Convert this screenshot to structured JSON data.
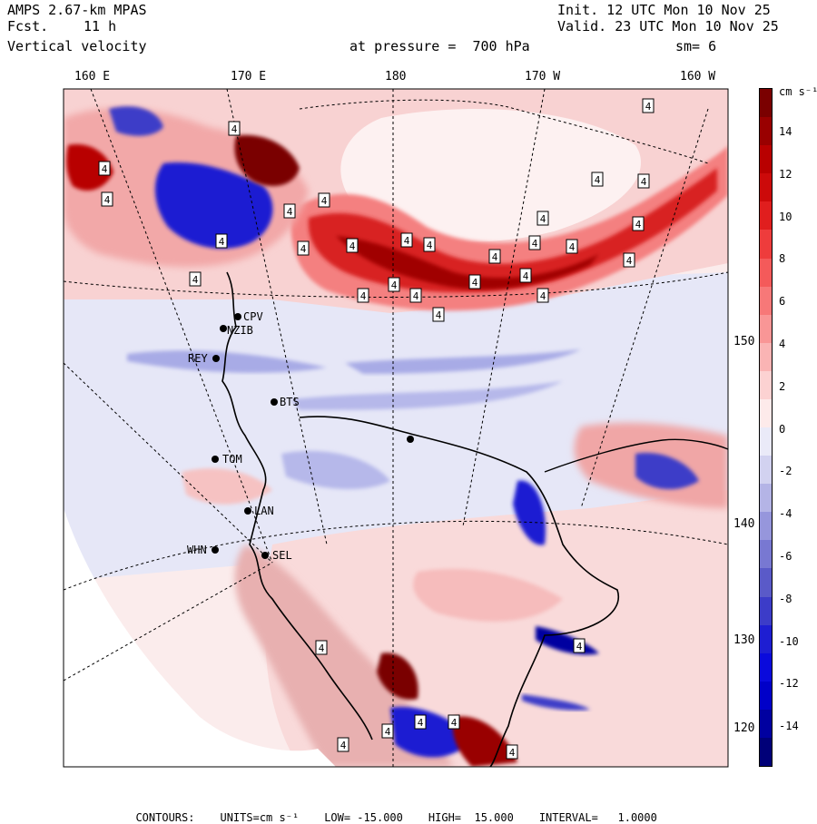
{
  "header": {
    "model": "AMPS 2.67-km MPAS",
    "forecast_label": "Fcst.",
    "forecast_hours": "11 h",
    "variable": "Vertical velocity",
    "pressure_text": "at pressure =  700 hPa",
    "init_text": "Init. 12 UTC Mon 10 Nov 25",
    "valid_text": "Valid. 23 UTC Mon 10 Nov 25",
    "smoothing_text": "sm= 6"
  },
  "longitude_labels": [
    "160 E",
    "170 E",
    "180",
    "170 W",
    "160 W"
  ],
  "latitude_labels": [
    "150 W",
    "140 W",
    "130 W",
    "120 W"
  ],
  "stations": [
    "CPV",
    "NZIB",
    "REY",
    "BTS",
    "TOM",
    "LAN",
    "WHN",
    "SEL"
  ],
  "contour_label_value": "4",
  "colorbar": {
    "unit_label": "cm s⁻¹",
    "labels": [
      "14",
      "12",
      "10",
      "8",
      "6",
      "4",
      "2",
      "0",
      "-2",
      "-4",
      "-6",
      "-8",
      "-10",
      "-12",
      "-14"
    ],
    "colors": [
      "#7a0000",
      "#990000",
      "#b80000",
      "#cc0a0a",
      "#e01e1e",
      "#ee3c3c",
      "#f45a5a",
      "#f77878",
      "#f99696",
      "#fab4b4",
      "#fcd2d2",
      "#fdeaea",
      "#eaeaf8",
      "#d2d2f0",
      "#b4b4e6",
      "#9696dc",
      "#7878d2",
      "#5a5ac8",
      "#3c3cc8",
      "#1e1ed2",
      "#0a0adc",
      "#0000c8",
      "#0000a0",
      "#000078"
    ]
  },
  "footer": {
    "contours": "CONTOURS:",
    "units": "UNITS=cm s⁻¹",
    "low": "LOW= -15.000",
    "high": "HIGH=  15.000",
    "interval": "INTERVAL=   1.0000"
  },
  "palette": {
    "jet_red": "#e23a3a",
    "pale_red": "#f7c8c8",
    "pale_blue": "#d6d8f2",
    "mid_blue": "#8a90dc",
    "deep_blue": "#0000c8",
    "no_data": "#ffffff"
  }
}
